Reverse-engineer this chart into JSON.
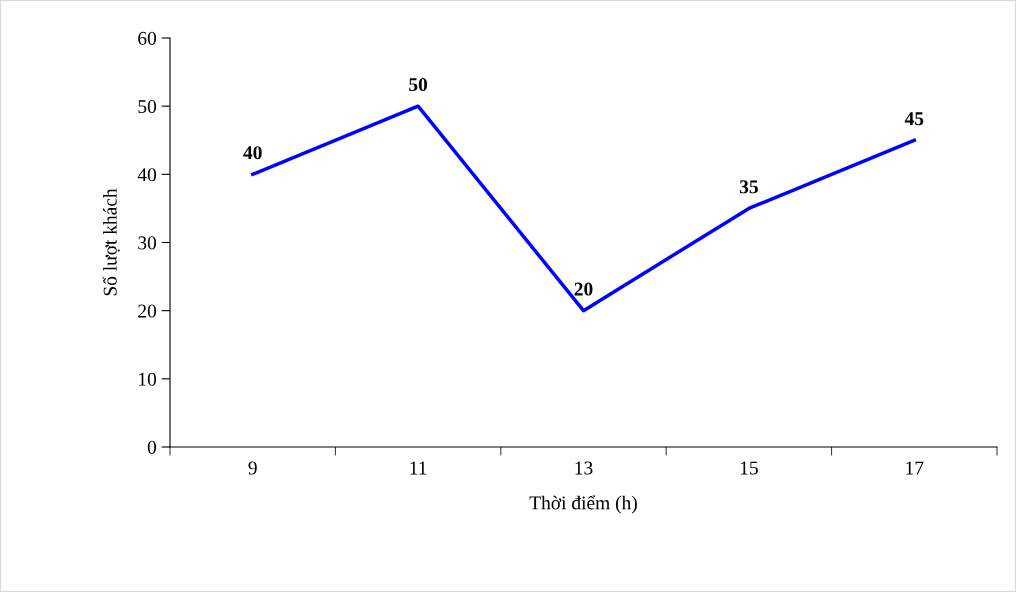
{
  "chart_data": {
    "type": "line",
    "xlabel": "Thời điểm (h)",
    "ylabel": "Số lượt khách",
    "categories": [
      "9",
      "11",
      "13",
      "15",
      "17"
    ],
    "series": [
      {
        "color": "#0000ff",
        "values": [
          40,
          50,
          20,
          35,
          45
        ]
      }
    ],
    "ylim": [
      0,
      60
    ],
    "yticks": [
      0,
      10,
      20,
      30,
      40,
      50,
      60
    ],
    "data_labels": true,
    "grid": false,
    "legend": false,
    "marker": "none",
    "line_style": "solid"
  }
}
